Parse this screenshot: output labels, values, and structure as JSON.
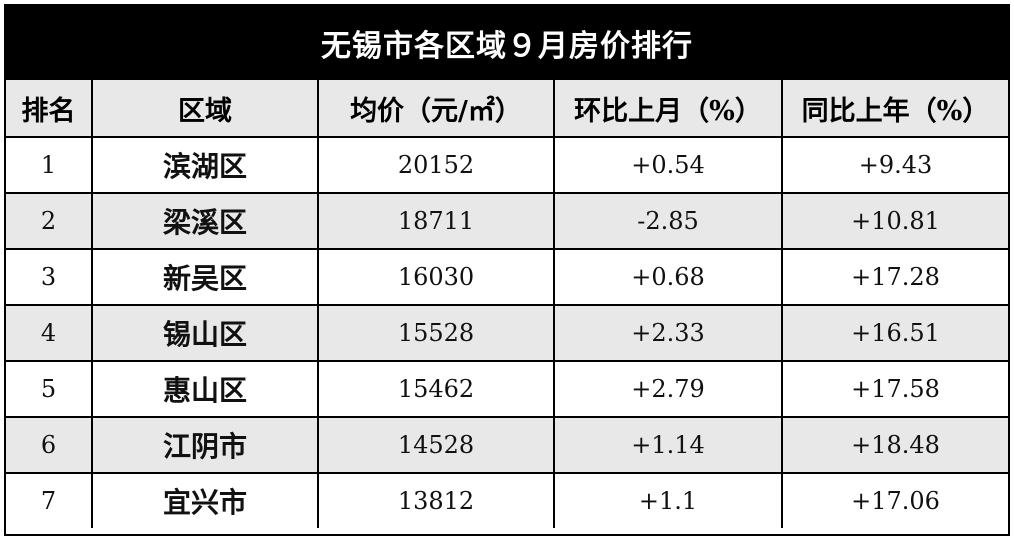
{
  "title": "无锡市各区域９月房价排行",
  "headers": {
    "rank": "排名",
    "district": "区域",
    "price": "均价（元/㎡）",
    "mom": "环比上月（%）",
    "yoy": "同比上年（%）"
  },
  "rows": [
    {
      "rank": "1",
      "district": "滨湖区",
      "price": "20152",
      "mom": "+0.54",
      "yoy": "+9.43"
    },
    {
      "rank": "2",
      "district": "梁溪区",
      "price": "18711",
      "mom": "-2.85",
      "yoy": "+10.81"
    },
    {
      "rank": "3",
      "district": "新吴区",
      "price": "16030",
      "mom": "+0.68",
      "yoy": "+17.28"
    },
    {
      "rank": "4",
      "district": "锡山区",
      "price": "15528",
      "mom": "+2.33",
      "yoy": "+16.51"
    },
    {
      "rank": "5",
      "district": "惠山区",
      "price": "15462",
      "mom": "+2.79",
      "yoy": "+17.58"
    },
    {
      "rank": "6",
      "district": "江阴市",
      "price": "14528",
      "mom": "+1.14",
      "yoy": "+18.48"
    },
    {
      "rank": "7",
      "district": "宜兴市",
      "price": "13812",
      "mom": "+1.1",
      "yoy": "+17.06"
    }
  ]
}
